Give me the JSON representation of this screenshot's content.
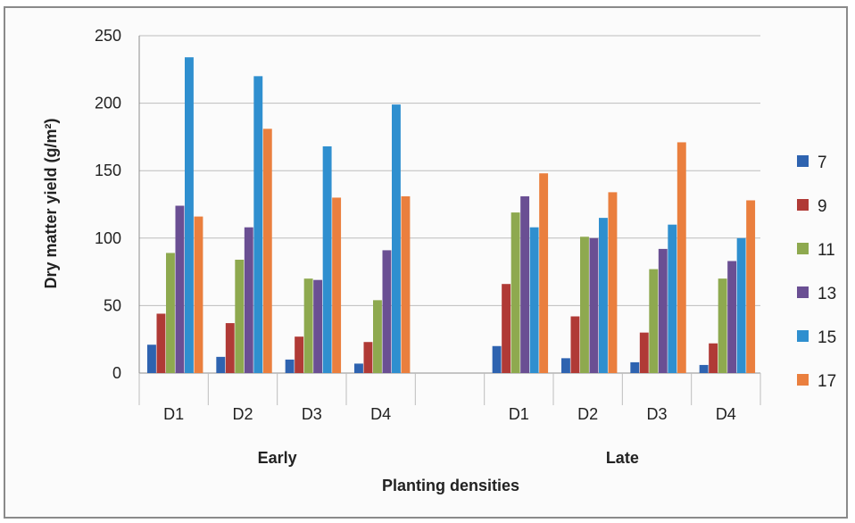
{
  "chart_data": {
    "type": "bar",
    "title": "",
    "xlabel": "Planting densities",
    "ylabel": "Dry matter yield (g/m²)",
    "ylim": [
      0,
      250
    ],
    "yticks": [
      0,
      50,
      100,
      150,
      200,
      250
    ],
    "grid": true,
    "legend_position": "right",
    "groups": [
      "Early",
      "Late"
    ],
    "categories": [
      {
        "label": "D1",
        "group": "Early"
      },
      {
        "label": "D2",
        "group": "Early"
      },
      {
        "label": "D3",
        "group": "Early"
      },
      {
        "label": "D4",
        "group": "Early"
      },
      {
        "label": "",
        "group": ""
      },
      {
        "label": "D1",
        "group": "Late"
      },
      {
        "label": "D2",
        "group": "Late"
      },
      {
        "label": "D3",
        "group": "Late"
      },
      {
        "label": "D4",
        "group": "Late"
      }
    ],
    "series": [
      {
        "name": "7",
        "color": "#2e63b0",
        "values": [
          21,
          12,
          10,
          7,
          null,
          20,
          11,
          8,
          6
        ]
      },
      {
        "name": "9",
        "color": "#b03a36",
        "values": [
          44,
          37,
          27,
          23,
          null,
          66,
          42,
          30,
          22
        ]
      },
      {
        "name": "11",
        "color": "#8ea94f",
        "values": [
          89,
          84,
          70,
          54,
          null,
          119,
          101,
          77,
          70
        ]
      },
      {
        "name": "13",
        "color": "#6a4f93",
        "values": [
          124,
          108,
          69,
          91,
          null,
          131,
          100,
          92,
          83
        ]
      },
      {
        "name": "15",
        "color": "#2f8fcf",
        "values": [
          234,
          220,
          168,
          199,
          null,
          108,
          115,
          110,
          100
        ]
      },
      {
        "name": "17",
        "color": "#ea7f3e",
        "values": [
          116,
          181,
          130,
          131,
          null,
          148,
          134,
          171,
          128
        ]
      }
    ]
  }
}
